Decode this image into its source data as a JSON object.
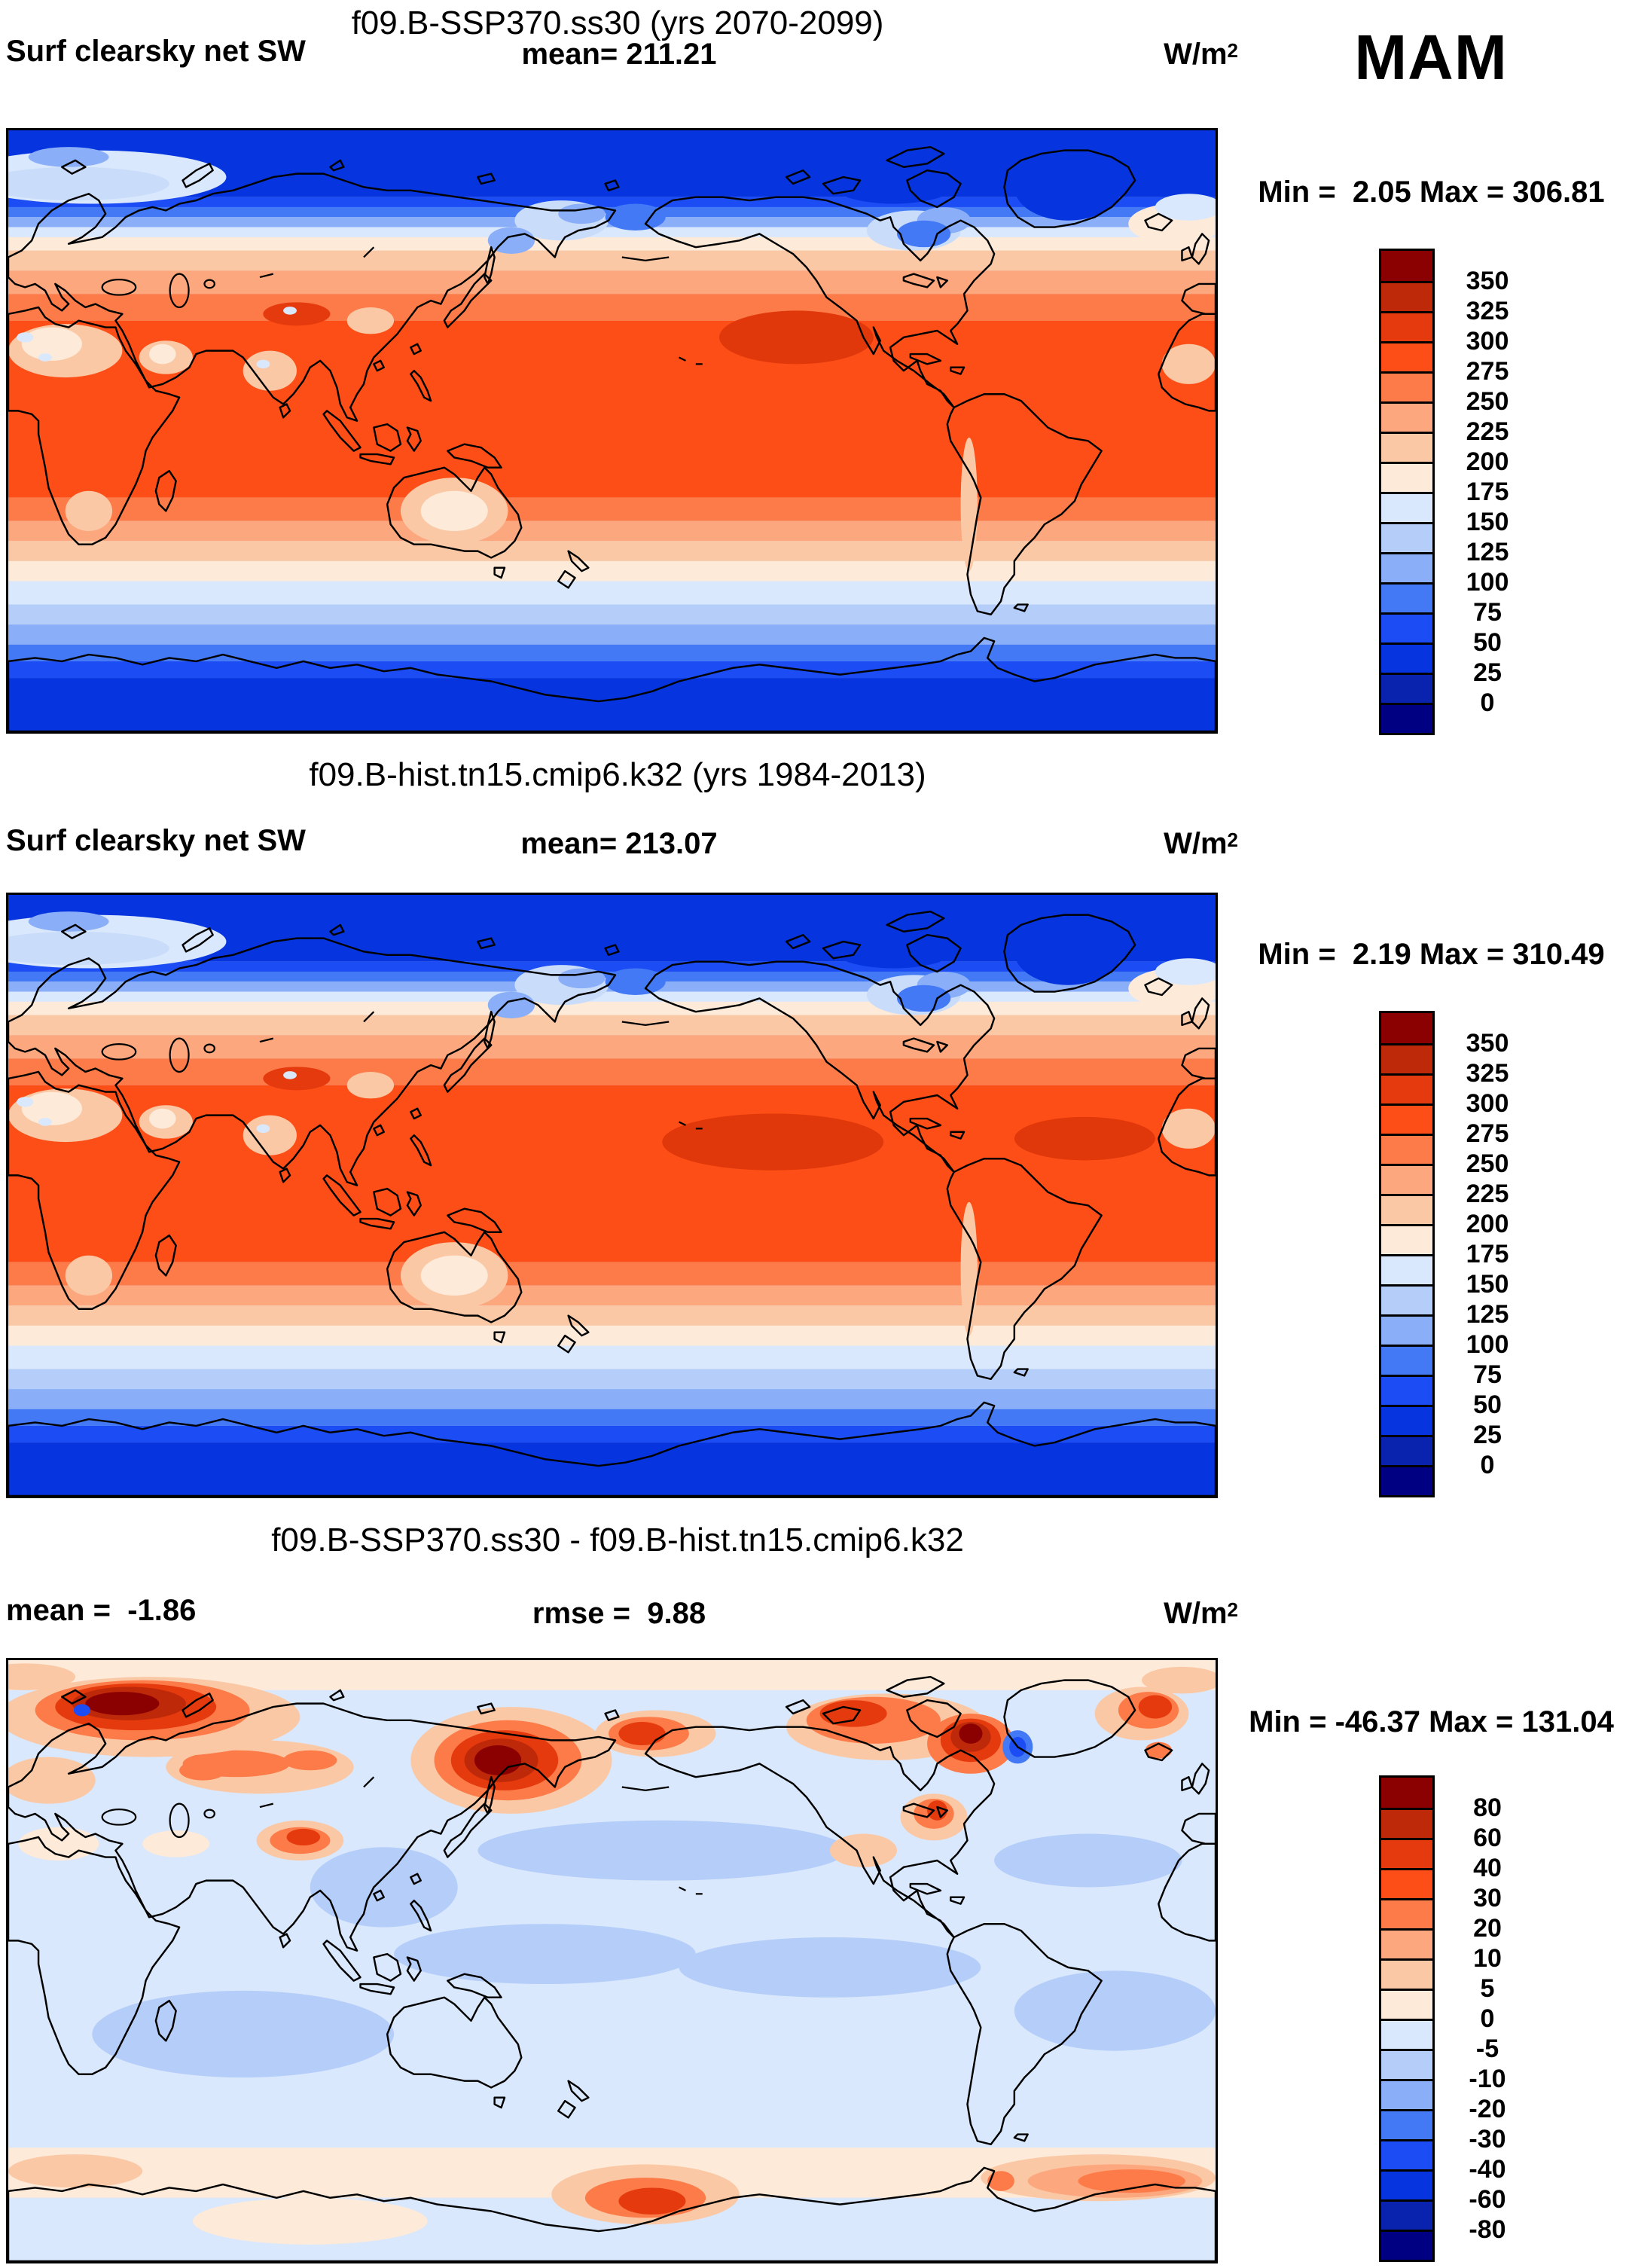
{
  "season_label": "MAM",
  "units": {
    "base": "W/m",
    "exp": "2"
  },
  "panels": [
    {
      "title": "f09.B-SSP370.ss30 (yrs 2070-2099)",
      "left_label": "Surf clearsky net SW",
      "center_label": "mean= 211.21",
      "minmax": "Min =  2.05 Max = 306.81",
      "colorbar_labels": [
        "350",
        "325",
        "300",
        "275",
        "250",
        "225",
        "200",
        "175",
        "150",
        "125",
        "100",
        "75",
        "50",
        "25",
        "0"
      ]
    },
    {
      "title": "f09.B-hist.tn15.cmip6.k32 (yrs 1984-2013)",
      "left_label": "Surf clearsky net SW",
      "center_label": "mean= 213.07",
      "minmax": "Min =  2.19 Max = 310.49",
      "colorbar_labels": [
        "350",
        "325",
        "300",
        "275",
        "250",
        "225",
        "200",
        "175",
        "150",
        "125",
        "100",
        "75",
        "50",
        "25",
        "0"
      ]
    },
    {
      "title": "f09.B-SSP370.ss30 - f09.B-hist.tn15.cmip6.k32",
      "left_label": "mean =  -1.86",
      "center_label": "rmse =  9.88",
      "minmax": "Min = -46.37 Max = 131.04",
      "colorbar_labels": [
        "80",
        "60",
        "40",
        "30",
        "20",
        "10",
        "5",
        "0",
        "-5",
        "-10",
        "-20",
        "-30",
        "-40",
        "-60",
        "-80"
      ]
    }
  ],
  "colorbar_colors": [
    "#8B0000",
    "#BE2909",
    "#E53A0D",
    "#FD4E17",
    "#FC7B49",
    "#FCA77D",
    "#FBC8A5",
    "#FDEAD9",
    "#D9E8FC",
    "#B5CDF9",
    "#8AAEF7",
    "#4479F6",
    "#1C4CF4",
    "#0634DF",
    "#0923AF",
    "#000082"
  ],
  "chart_data": {
    "type": "heatmap",
    "subtype": "filled_contour_world_maps",
    "projection": "cylindrical equidistant, lon 0-360E, lat 90N-90S",
    "season": "MAM",
    "variable": "Surf clearsky net SW",
    "units": "W/m2",
    "contour_levels_absolute": [
      0,
      25,
      50,
      75,
      100,
      125,
      150,
      175,
      200,
      225,
      250,
      275,
      300,
      325,
      350
    ],
    "contour_levels_difference": [
      -80,
      -60,
      -40,
      -30,
      -20,
      -10,
      -5,
      0,
      5,
      10,
      20,
      30,
      40,
      60,
      80
    ],
    "palette_hot_to_cold": [
      "#8B0000",
      "#BE2909",
      "#E53A0D",
      "#FD4E17",
      "#FC7B49",
      "#FCA77D",
      "#FBC8A5",
      "#FDEAD9",
      "#D9E8FC",
      "#B5CDF9",
      "#8AAEF7",
      "#4479F6",
      "#1C4CF4",
      "#0634DF",
      "#0923AF",
      "#000082"
    ],
    "panels": [
      {
        "name": "f09.B-SSP370.ss30",
        "years": "2070-2099",
        "mean": 211.21,
        "min": 2.05,
        "max": 306.81
      },
      {
        "name": "f09.B-hist.tn15.cmip6.k32",
        "years": "1984-2013",
        "mean": 213.07,
        "min": 2.19,
        "max": 310.49
      },
      {
        "name": "f09.B-SSP370.ss30 - f09.B-hist.tn15.cmip6.k32",
        "mean": -1.86,
        "rmse": 9.88,
        "min": -46.37,
        "max": 131.04
      }
    ],
    "zonal_bands_absolute": [
      [
        0,
        20,
        "#0634DF"
      ],
      [
        20,
        23,
        "#1C4CF4"
      ],
      [
        23,
        26,
        "#4479F6"
      ],
      [
        26,
        29,
        "#8AAEF7"
      ],
      [
        29,
        32,
        "#D9E8FC"
      ],
      [
        32,
        36,
        "#FDEAD9"
      ],
      [
        36,
        42,
        "#FBC8A5"
      ],
      [
        42,
        49,
        "#FCA77D"
      ],
      [
        49,
        57,
        "#FC7B49"
      ],
      [
        57,
        110,
        "#FD4E17"
      ],
      [
        110,
        117,
        "#FC7B49"
      ],
      [
        117,
        123,
        "#FCA77D"
      ],
      [
        123,
        129,
        "#FBC8A5"
      ],
      [
        129,
        135,
        "#FDEAD9"
      ],
      [
        135,
        142,
        "#D9E8FC"
      ],
      [
        142,
        148,
        "#B5CDF9"
      ],
      [
        148,
        154,
        "#8AAEF7"
      ],
      [
        154,
        159,
        "#4479F6"
      ],
      [
        159,
        164,
        "#1C4CF4"
      ],
      [
        164,
        180,
        "#0634DF"
      ]
    ],
    "zonal_bands_difference": [
      [
        0,
        9,
        "#FDEAD9"
      ],
      [
        9,
        146,
        "#D9E8FC"
      ],
      [
        146,
        161,
        "#FDEAD9"
      ],
      [
        161,
        180,
        "#D9E8FC"
      ]
    ],
    "regional_patches_absolute": [
      [
        25,
        14,
        40,
        8,
        "#D9E8FC"
      ],
      [
        20,
        16,
        28,
        5,
        "#C9DCFA"
      ],
      [
        18,
        8,
        12,
        3,
        "#8AAEF7"
      ],
      [
        348,
        28,
        14,
        6,
        "#FDEAD9"
      ],
      [
        352,
        23,
        10,
        4,
        "#D9E8FC"
      ],
      [
        316,
        17,
        16,
        10,
        "#0634DF"
      ],
      [
        264,
        15,
        20,
        7,
        "#0634DF"
      ],
      [
        17,
        66,
        17,
        8,
        "#FBC8A5"
      ],
      [
        13,
        64,
        9,
        5,
        "#FDEAD9"
      ],
      [
        5,
        62,
        2.5,
        1.5,
        "#D9E8FC"
      ],
      [
        11,
        68,
        2,
        1.2,
        "#D9E8FC"
      ],
      [
        352,
        70,
        8,
        6,
        "#FBC8A5"
      ],
      [
        47,
        68,
        8,
        5,
        "#FBC8A5"
      ],
      [
        46,
        67,
        4,
        3,
        "#FDEAD9"
      ],
      [
        78,
        72,
        8,
        6,
        "#FBC8A5"
      ],
      [
        76,
        70,
        2,
        1.3,
        "#D9E8FC"
      ],
      [
        86,
        55,
        10,
        3.5,
        "#E53A0D"
      ],
      [
        84,
        54,
        2,
        1.2,
        "#D9E8FC"
      ],
      [
        108,
        57,
        7,
        4,
        "#FBC8A5"
      ],
      [
        133,
        114,
        16,
        10,
        "#FBC8A5"
      ],
      [
        133,
        114,
        10,
        6,
        "#FDEAD9"
      ],
      [
        24,
        114,
        7,
        6,
        "#FBC8A5"
      ],
      [
        286.5,
        112,
        2.5,
        20,
        "#FBC8A5"
      ],
      [
        165,
        27,
        14,
        6,
        "#C9DCFA"
      ],
      [
        171,
        25,
        7,
        3,
        "#8AAEF7"
      ],
      [
        270,
        30,
        14,
        6,
        "#C9DCFA"
      ],
      [
        279,
        27,
        8,
        4,
        "#8AAEF7"
      ],
      [
        273,
        31,
        8,
        4,
        "#4479F6"
      ],
      [
        150,
        33,
        7,
        4,
        "#8AAEF7"
      ],
      [
        187,
        26,
        9,
        4,
        "#4479F6"
      ]
    ],
    "hot_blobs_map1": [
      [
        235,
        62,
        23,
        8,
        "#E0380A"
      ]
    ],
    "hot_blobs_map2": [
      [
        228,
        74,
        33,
        8.5,
        "#E0380A"
      ],
      [
        321,
        73,
        21,
        6.5,
        "#E0380A"
      ]
    ],
    "regional_patches_difference": [
      [
        195,
        57,
        55,
        9,
        "#B5CDF9"
      ],
      [
        322,
        60,
        28,
        8,
        "#B5CDF9"
      ],
      [
        112,
        68,
        22,
        12,
        "#B5CDF9"
      ],
      [
        160,
        88,
        45,
        9,
        "#B5CDF9"
      ],
      [
        245,
        92,
        45,
        9,
        "#B5CDF9"
      ],
      [
        70,
        112,
        45,
        13,
        "#B5CDF9"
      ],
      [
        330,
        105,
        30,
        12,
        "#B5CDF9"
      ],
      [
        15,
        55,
        12,
        5,
        "#FDEAD9"
      ],
      [
        50,
        55,
        10,
        4,
        "#FDEAD9"
      ],
      [
        90,
        168,
        35,
        7,
        "#FDEAD9"
      ],
      [
        5,
        5,
        15,
        4,
        "#FBC8A5"
      ],
      [
        350,
        6,
        12,
        4,
        "#FBC8A5"
      ],
      [
        12,
        36,
        14,
        7,
        "#FBC8A5"
      ],
      [
        255,
        57,
        10,
        5,
        "#FBC8A5"
      ],
      [
        75,
        32,
        28,
        8,
        "#FBC8A5"
      ],
      [
        68,
        31,
        16,
        4,
        "#FC7B49"
      ],
      [
        58,
        33,
        7,
        3,
        "#FC7B49"
      ],
      [
        90,
        30,
        8,
        3,
        "#FC7B49"
      ],
      [
        42,
        17,
        45,
        12,
        "#FBC8A5"
      ],
      [
        40,
        15,
        32,
        9,
        "#FC7B49"
      ],
      [
        38,
        14,
        24,
        7,
        "#E53A0D"
      ],
      [
        36,
        13,
        17,
        5,
        "#BE2909"
      ],
      [
        34,
        13,
        11,
        3.5,
        "#8B0000"
      ],
      [
        150,
        30,
        30,
        16,
        "#FBC8A5"
      ],
      [
        149,
        30,
        22,
        12,
        "#FC7B49"
      ],
      [
        148,
        30,
        16,
        9,
        "#E53A0D"
      ],
      [
        147,
        30,
        11,
        6.5,
        "#BE2909"
      ],
      [
        146,
        30,
        7,
        4.5,
        "#8B0000"
      ],
      [
        193,
        22,
        18,
        7,
        "#FBC8A5"
      ],
      [
        191,
        22,
        12,
        5,
        "#FC7B49"
      ],
      [
        189,
        22,
        7,
        3.5,
        "#E53A0D"
      ],
      [
        262,
        20,
        30,
        10,
        "#FBC8A5"
      ],
      [
        258,
        18,
        20,
        7,
        "#FC7B49"
      ],
      [
        252,
        16,
        10,
        4,
        "#E53A0D"
      ],
      [
        287,
        25,
        13,
        9,
        "#FC7B49"
      ],
      [
        287,
        24,
        9,
        6.5,
        "#E53A0D"
      ],
      [
        287,
        23,
        6,
        4.5,
        "#BE2909"
      ],
      [
        287,
        22,
        3.5,
        3,
        "#8B0000"
      ],
      [
        338,
        16,
        14,
        8,
        "#FBC8A5"
      ],
      [
        340,
        15,
        9,
        5.5,
        "#FC7B49"
      ],
      [
        342,
        14,
        5,
        3.5,
        "#E53A0D"
      ],
      [
        301,
        26,
        4.5,
        5,
        "#4479F6"
      ],
      [
        301,
        26,
        2.5,
        3,
        "#1C4CF4"
      ],
      [
        22,
        15,
        2.5,
        1.8,
        "#1C4CF4"
      ],
      [
        87,
        54,
        13,
        6,
        "#FBC8A5"
      ],
      [
        87,
        54,
        9,
        4,
        "#FC7B49"
      ],
      [
        88,
        53,
        5,
        2.5,
        "#E53A0D"
      ],
      [
        276,
        47,
        10,
        7,
        "#FBC8A5"
      ],
      [
        276,
        46,
        6,
        4.5,
        "#FC7B49"
      ],
      [
        277,
        45,
        3,
        3,
        "#E53A0D"
      ],
      [
        343,
        27,
        4,
        2.5,
        "#FC7B49"
      ],
      [
        20,
        153,
        20,
        5,
        "#FBC8A5"
      ],
      [
        190,
        160,
        28,
        9,
        "#FBC8A5"
      ],
      [
        190,
        161,
        18,
        6,
        "#FC7B49"
      ],
      [
        192,
        162,
        10,
        4,
        "#E53A0D"
      ],
      [
        325,
        155,
        35,
        7,
        "#FBC8A5"
      ],
      [
        330,
        156,
        26,
        5,
        "#FCA77D"
      ],
      [
        335,
        156,
        16,
        3.5,
        "#FC7B49"
      ],
      [
        296,
        156,
        4,
        3,
        "#FC7B49"
      ]
    ]
  }
}
